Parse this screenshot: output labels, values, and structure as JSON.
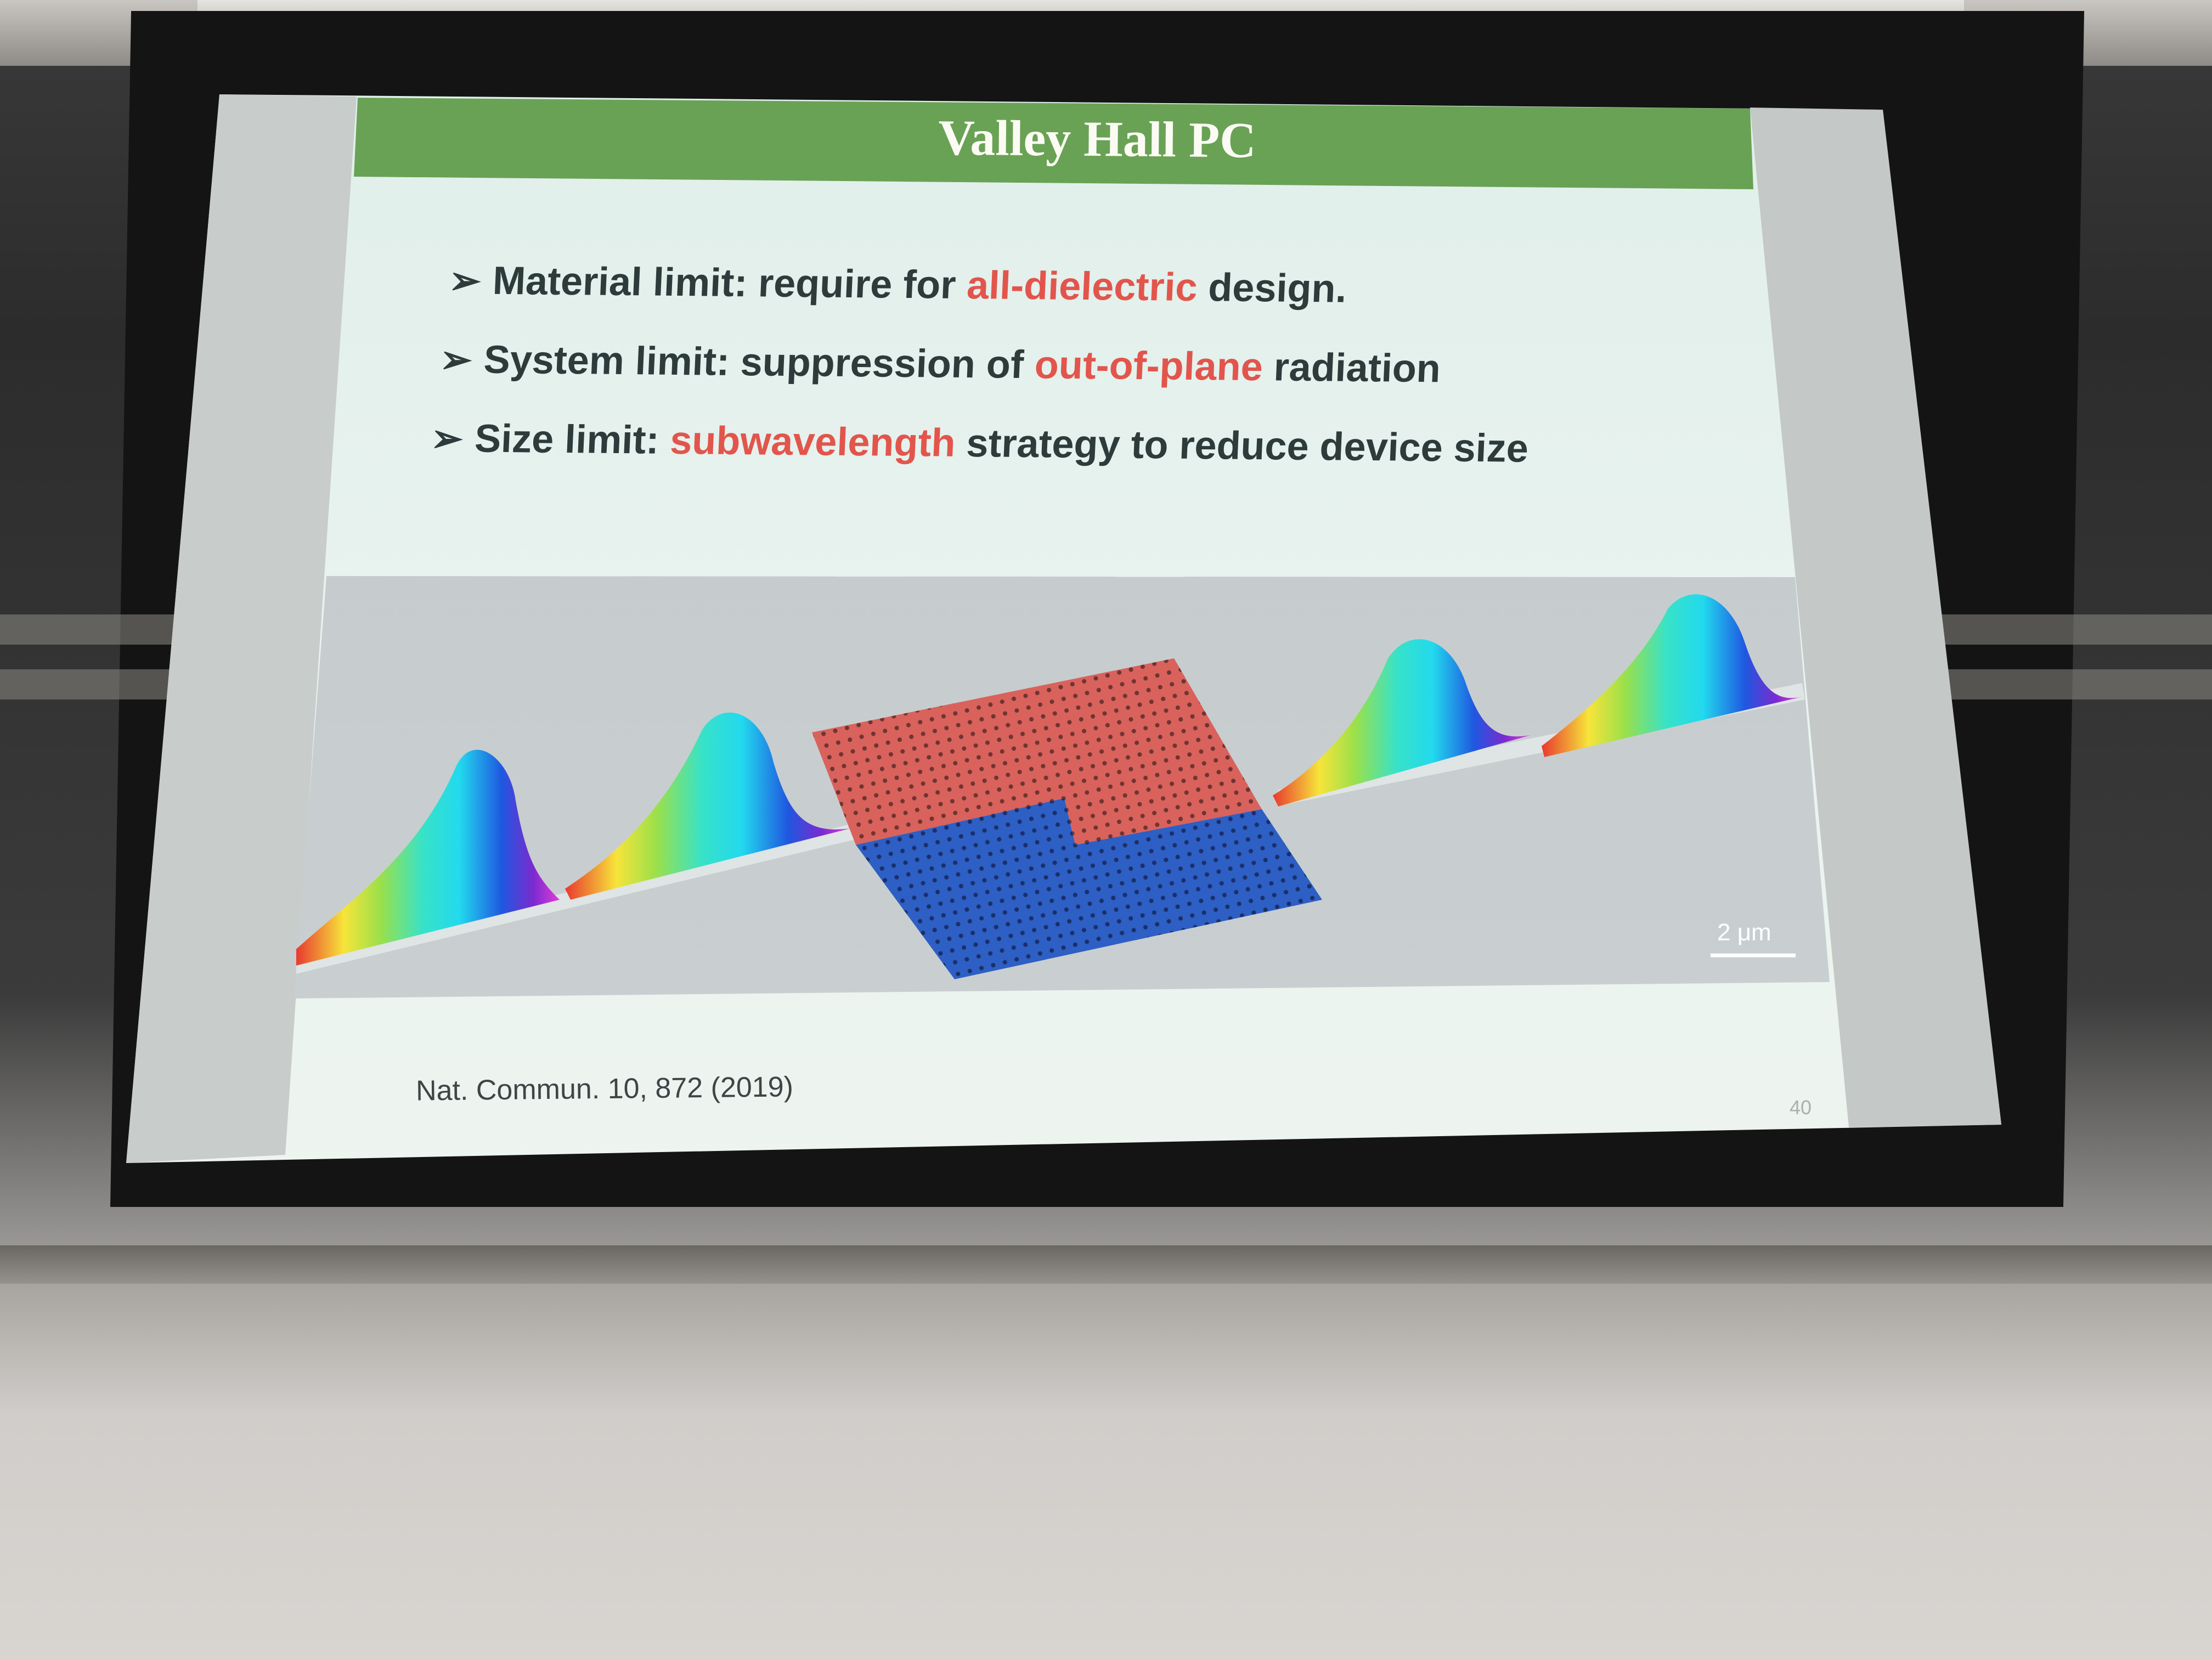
{
  "slide": {
    "title": "Valley Hall PC",
    "bullets": [
      {
        "lead": "Material limit: require for ",
        "highlight": "all-dielectric",
        "tail": " design."
      },
      {
        "lead": "System limit: suppression of ",
        "highlight": "out-of-plane",
        "tail": " radiation"
      },
      {
        "lead": "Size limit: ",
        "highlight": "subwavelength",
        "tail": " strategy to reduce device size"
      }
    ],
    "figure": {
      "scale_bar": "2 μm"
    },
    "citation": "Nat. Commun. 10, 872 (2019)",
    "page_number": "40"
  },
  "colors": {
    "title_bar": "#5f9a4c",
    "highlight": "#e2554c",
    "body_text": "#2d3b3b",
    "crystal_top": "#d9625c",
    "crystal_bottom": "#2d5fc4"
  }
}
